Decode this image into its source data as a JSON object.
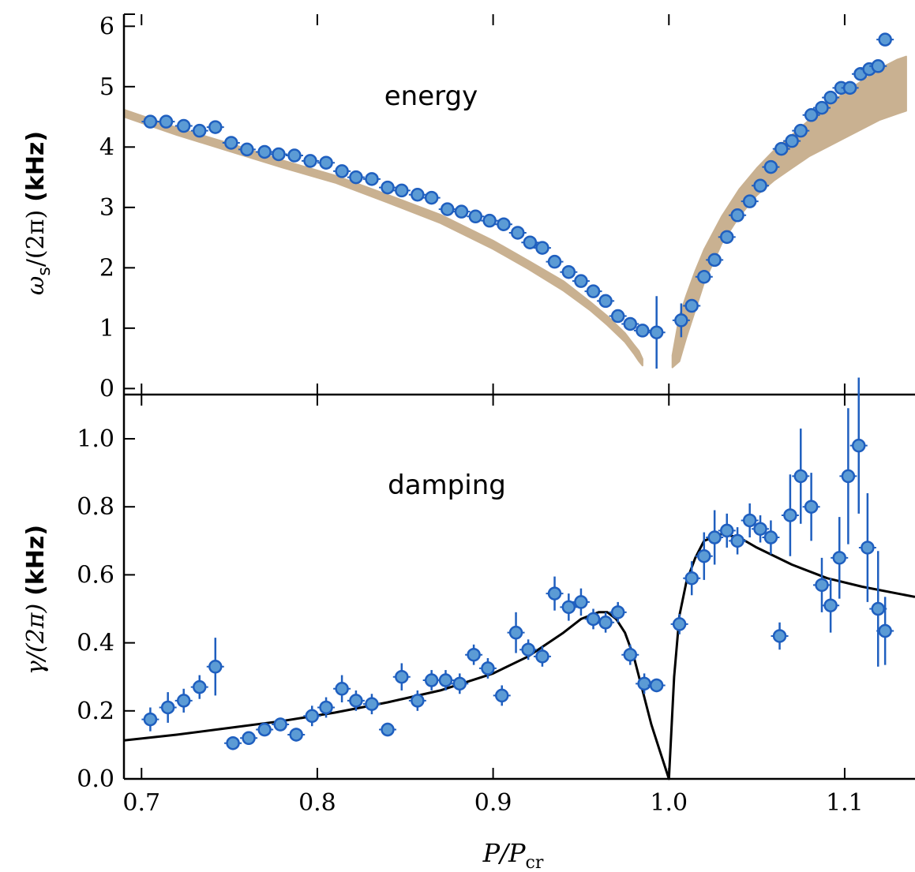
{
  "chart_data": [
    {
      "type": "scatter",
      "panel": "top",
      "annotation": "energy",
      "ylabel_math": "ω",
      "ylabel_sub": "s",
      "ylabel_rest": "/(2π)",
      "ylabel_units": "(kHz)",
      "ylim": [
        -0.1,
        6.2
      ],
      "yticks": [
        0,
        1,
        2,
        3,
        4,
        5,
        6
      ],
      "xlim": [
        0.69,
        1.14
      ],
      "band_color": "#c9b191",
      "marker_color": "#5b9bd5",
      "marker_edge": "#1f5fbf",
      "band_left": {
        "x": [
          0.69,
          0.72,
          0.75,
          0.78,
          0.81,
          0.84,
          0.87,
          0.9,
          0.92,
          0.94,
          0.955,
          0.965,
          0.975,
          0.98,
          0.983,
          0.985,
          0.985
        ],
        "upper": [
          4.62,
          4.32,
          4.06,
          3.78,
          3.53,
          3.21,
          2.88,
          2.45,
          2.12,
          1.78,
          1.44,
          1.2,
          0.92,
          0.73,
          0.62,
          0.49,
          0.43
        ],
        "lower": [
          4.5,
          4.2,
          3.93,
          3.66,
          3.41,
          3.08,
          2.74,
          2.31,
          1.98,
          1.62,
          1.3,
          1.05,
          0.77,
          0.58,
          0.45,
          0.38,
          0.38
        ]
      },
      "band_right": {
        "x": [
          1.002,
          1.006,
          1.01,
          1.015,
          1.02,
          1.03,
          1.04,
          1.05,
          1.06,
          1.07,
          1.08,
          1.09,
          1.1,
          1.11,
          1.12,
          1.13,
          1.135
        ],
        "upper": [
          0.55,
          1.2,
          1.55,
          1.95,
          2.3,
          2.85,
          3.3,
          3.65,
          3.95,
          4.2,
          4.45,
          4.7,
          4.9,
          5.1,
          5.3,
          5.45,
          5.5
        ],
        "lower": [
          0.35,
          0.45,
          0.85,
          1.3,
          1.75,
          2.4,
          2.85,
          3.2,
          3.45,
          3.65,
          3.85,
          4.0,
          4.15,
          4.3,
          4.45,
          4.55,
          4.6
        ]
      },
      "points": {
        "x": [
          0.705,
          0.714,
          0.724,
          0.733,
          0.742,
          0.751,
          0.76,
          0.77,
          0.778,
          0.787,
          0.796,
          0.805,
          0.814,
          0.822,
          0.831,
          0.84,
          0.848,
          0.857,
          0.865,
          0.874,
          0.882,
          0.89,
          0.898,
          0.906,
          0.914,
          0.921,
          0.928,
          0.935,
          0.943,
          0.95,
          0.957,
          0.964,
          0.971,
          0.978,
          0.985,
          0.993,
          1.007,
          1.013,
          1.02,
          1.026,
          1.033,
          1.039,
          1.046,
          1.052,
          1.058,
          1.064,
          1.07,
          1.075,
          1.081,
          1.087,
          1.092,
          1.098,
          1.103,
          1.109,
          1.114,
          1.119,
          1.123
        ],
        "y": [
          4.42,
          4.42,
          4.35,
          4.27,
          4.33,
          4.07,
          3.96,
          3.92,
          3.88,
          3.86,
          3.77,
          3.74,
          3.6,
          3.5,
          3.47,
          3.33,
          3.28,
          3.21,
          3.16,
          2.97,
          2.93,
          2.85,
          2.78,
          2.72,
          2.58,
          2.42,
          2.33,
          2.1,
          1.93,
          1.78,
          1.61,
          1.45,
          1.2,
          1.07,
          0.96,
          0.93,
          1.13,
          1.37,
          1.85,
          2.13,
          2.51,
          2.87,
          3.1,
          3.36,
          3.67,
          3.97,
          4.1,
          4.27,
          4.53,
          4.65,
          4.82,
          4.98,
          4.98,
          5.21,
          5.29,
          5.34,
          5.78
        ],
        "yerr": [
          0.05,
          0.05,
          0.05,
          0.05,
          0.05,
          0.05,
          0.05,
          0.05,
          0.05,
          0.05,
          0.05,
          0.05,
          0.05,
          0.05,
          0.05,
          0.05,
          0.05,
          0.05,
          0.05,
          0.05,
          0.05,
          0.05,
          0.05,
          0.05,
          0.05,
          0.05,
          0.05,
          0.05,
          0.05,
          0.05,
          0.05,
          0.05,
          0.05,
          0.05,
          0.08,
          0.6,
          0.28,
          0.05,
          0.05,
          0.05,
          0.05,
          0.05,
          0.05,
          0.05,
          0.05,
          0.05,
          0.05,
          0.05,
          0.05,
          0.05,
          0.05,
          0.05,
          0.05,
          0.05,
          0.05,
          0.05,
          0.05
        ]
      }
    },
    {
      "type": "scatter",
      "panel": "bottom",
      "annotation": "damping",
      "ylabel_math": "γ/(2π)",
      "ylabel_units": "(kHz)",
      "ylim": [
        0.0,
        1.13
      ],
      "yticks": [
        0.0,
        0.2,
        0.4,
        0.6,
        0.8,
        1.0
      ],
      "ytick_labels": [
        "0.0",
        "0.2",
        "0.4",
        "0.6",
        "0.8",
        "1.0"
      ],
      "xlim": [
        0.69,
        1.14
      ],
      "xticks": [
        0.7,
        0.8,
        0.9,
        1.0,
        1.1
      ],
      "xtick_labels": [
        "0.7",
        "0.8",
        "0.9",
        "1.0",
        "1.1"
      ],
      "xlabel_main": "P/P",
      "xlabel_sub": "cr",
      "curve_color": "#000000",
      "curve": {
        "x": [
          0.69,
          0.72,
          0.75,
          0.78,
          0.81,
          0.84,
          0.87,
          0.9,
          0.92,
          0.94,
          0.95,
          0.96,
          0.965,
          0.97,
          0.975,
          0.98,
          0.985,
          0.99,
          0.995,
          1.0,
          1.003,
          1.006,
          1.01,
          1.015,
          1.02,
          1.03,
          1.04,
          1.05,
          1.07,
          1.09,
          1.11,
          1.14
        ],
        "y": [
          0.113,
          0.13,
          0.15,
          0.17,
          0.195,
          0.225,
          0.26,
          0.31,
          0.36,
          0.43,
          0.47,
          0.49,
          0.49,
          0.47,
          0.43,
          0.36,
          0.26,
          0.16,
          0.08,
          0.0,
          0.3,
          0.48,
          0.58,
          0.65,
          0.7,
          0.72,
          0.71,
          0.68,
          0.63,
          0.59,
          0.565,
          0.535
        ]
      },
      "points": {
        "x": [
          0.705,
          0.715,
          0.724,
          0.733,
          0.742,
          0.752,
          0.761,
          0.77,
          0.779,
          0.788,
          0.797,
          0.805,
          0.814,
          0.822,
          0.831,
          0.84,
          0.848,
          0.857,
          0.865,
          0.873,
          0.881,
          0.889,
          0.897,
          0.905,
          0.913,
          0.92,
          0.928,
          0.935,
          0.943,
          0.95,
          0.957,
          0.964,
          0.971,
          0.978,
          0.986,
          0.993,
          1.006,
          1.013,
          1.02,
          1.026,
          1.033,
          1.039,
          1.046,
          1.052,
          1.058,
          1.063,
          1.069,
          1.075,
          1.081,
          1.087,
          1.092,
          1.097,
          1.102,
          1.108,
          1.113,
          1.119,
          1.123
        ],
        "y": [
          0.175,
          0.21,
          0.23,
          0.27,
          0.33,
          0.105,
          0.12,
          0.145,
          0.16,
          0.13,
          0.185,
          0.21,
          0.265,
          0.23,
          0.22,
          0.145,
          0.3,
          0.23,
          0.29,
          0.29,
          0.28,
          0.365,
          0.325,
          0.245,
          0.43,
          0.38,
          0.36,
          0.545,
          0.505,
          0.52,
          0.47,
          0.46,
          0.49,
          0.365,
          0.28,
          0.275,
          0.455,
          0.59,
          0.655,
          0.71,
          0.73,
          0.7,
          0.76,
          0.735,
          0.71,
          0.42,
          0.775,
          0.89,
          0.8,
          0.57,
          0.51,
          0.65,
          0.89,
          0.98,
          0.68,
          0.5,
          0.435
        ],
        "yerr": [
          0.035,
          0.045,
          0.035,
          0.035,
          0.085,
          0.02,
          0.02,
          0.02,
          0.02,
          0.02,
          0.03,
          0.03,
          0.04,
          0.03,
          0.03,
          0.02,
          0.04,
          0.03,
          0.03,
          0.03,
          0.03,
          0.03,
          0.03,
          0.03,
          0.06,
          0.03,
          0.03,
          0.05,
          0.04,
          0.04,
          0.03,
          0.03,
          0.03,
          0.03,
          0.03,
          0.02,
          0.03,
          0.05,
          0.07,
          0.08,
          0.05,
          0.04,
          0.05,
          0.04,
          0.05,
          0.04,
          0.12,
          0.14,
          0.1,
          0.08,
          0.08,
          0.12,
          0.2,
          0.2,
          0.16,
          0.17,
          0.1
        ]
      }
    }
  ]
}
